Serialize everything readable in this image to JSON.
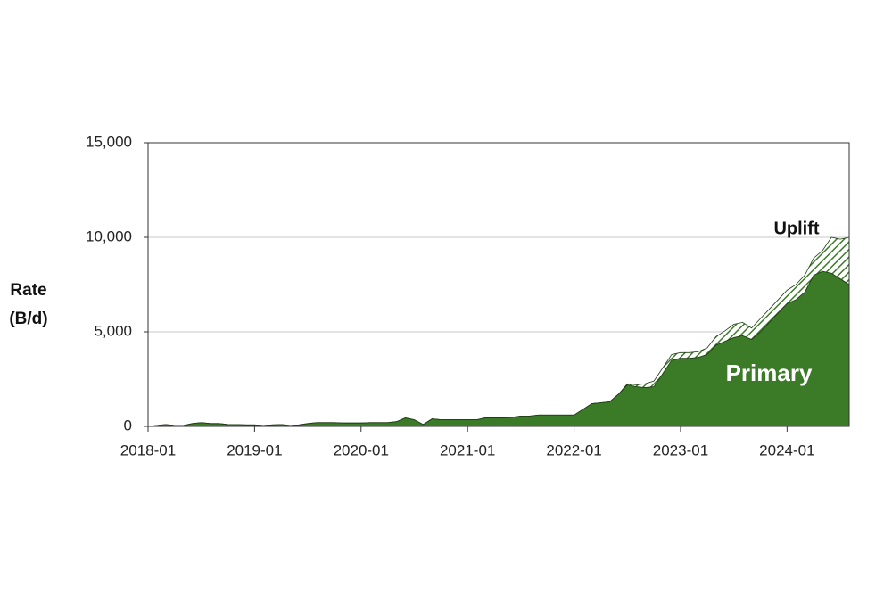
{
  "chart_data": {
    "type": "stacked_area",
    "ylabel_lines": [
      "Rate",
      "(B/d)"
    ],
    "x": [
      "2018-01",
      "2018-02",
      "2018-03",
      "2018-04",
      "2018-05",
      "2018-06",
      "2018-07",
      "2018-08",
      "2018-09",
      "2018-10",
      "2018-11",
      "2018-12",
      "2019-01",
      "2019-02",
      "2019-03",
      "2019-04",
      "2019-05",
      "2019-06",
      "2019-07",
      "2019-08",
      "2019-09",
      "2019-10",
      "2019-11",
      "2019-12",
      "2020-01",
      "2020-02",
      "2020-03",
      "2020-04",
      "2020-05",
      "2020-06",
      "2020-07",
      "2020-08",
      "2020-09",
      "2020-10",
      "2020-11",
      "2020-12",
      "2021-01",
      "2021-02",
      "2021-03",
      "2021-04",
      "2021-05",
      "2021-06",
      "2021-07",
      "2021-08",
      "2021-09",
      "2021-10",
      "2021-11",
      "2021-12",
      "2022-01",
      "2022-02",
      "2022-03",
      "2022-04",
      "2022-05",
      "2022-06",
      "2022-07",
      "2022-08",
      "2022-09",
      "2022-10",
      "2022-11",
      "2022-12",
      "2023-01",
      "2023-02",
      "2023-03",
      "2023-04",
      "2023-05",
      "2023-06",
      "2023-07",
      "2023-08",
      "2023-09",
      "2023-10",
      "2023-11",
      "2023-12",
      "2024-01",
      "2024-02",
      "2024-03",
      "2024-04",
      "2024-05",
      "2024-06",
      "2024-07",
      "2024-08"
    ],
    "series": [
      {
        "name": "Primary",
        "color": "#3b7a26",
        "values": [
          0,
          50,
          100,
          50,
          50,
          150,
          200,
          150,
          150,
          100,
          100,
          80,
          80,
          50,
          80,
          100,
          50,
          80,
          150,
          200,
          200,
          200,
          180,
          180,
          180,
          200,
          200,
          200,
          250,
          450,
          350,
          100,
          400,
          350,
          350,
          350,
          350,
          350,
          450,
          450,
          450,
          480,
          550,
          550,
          600,
          600,
          600,
          600,
          600,
          900,
          1200,
          1250,
          1300,
          1700,
          2200,
          2100,
          2050,
          2100,
          2800,
          3500,
          3600,
          3600,
          3650,
          3800,
          4300,
          4500,
          4700,
          4800,
          4600,
          5000,
          5500,
          6000,
          6500,
          6700,
          7100,
          8000,
          8200,
          8100,
          7800,
          7500
        ]
      },
      {
        "name": "Uplift",
        "color": "#3b7a26",
        "hatched": true,
        "values": [
          0,
          0,
          0,
          0,
          0,
          0,
          0,
          0,
          0,
          0,
          0,
          0,
          0,
          0,
          0,
          0,
          0,
          0,
          0,
          0,
          0,
          0,
          0,
          0,
          0,
          0,
          0,
          0,
          0,
          0,
          0,
          0,
          0,
          0,
          0,
          0,
          0,
          0,
          0,
          0,
          0,
          0,
          0,
          0,
          0,
          0,
          0,
          0,
          0,
          0,
          0,
          0,
          0,
          0,
          50,
          100,
          200,
          300,
          300,
          300,
          300,
          300,
          300,
          350,
          450,
          550,
          700,
          700,
          600,
          700,
          700,
          700,
          700,
          800,
          900,
          900,
          1100,
          1900,
          2100,
          2500
        ]
      }
    ],
    "xlim": [
      "2018-01",
      "2024-08"
    ],
    "xticks": [
      "2018-01",
      "2019-01",
      "2020-01",
      "2021-01",
      "2022-01",
      "2023-01",
      "2024-01"
    ],
    "ylim": [
      0,
      15000
    ],
    "yticks": [
      0,
      {
        "value": 5000,
        "label": "5,000"
      },
      {
        "value": 10000,
        "label": "10,000"
      },
      {
        "value": 15000,
        "label": "15,000"
      }
    ],
    "grid": true
  }
}
